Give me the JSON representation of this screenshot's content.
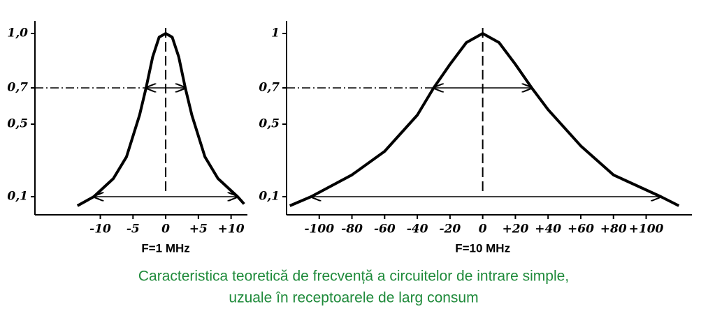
{
  "chart_data": [
    {
      "type": "line",
      "xlabel": "F=1 MHz",
      "x": [
        -13.5,
        -11,
        -8,
        -6,
        -4,
        -3,
        -2,
        -1,
        0,
        1,
        2,
        3,
        4,
        6,
        8,
        11,
        12
      ],
      "values": [
        0.05,
        0.1,
        0.2,
        0.32,
        0.55,
        0.7,
        0.87,
        0.98,
        1.0,
        0.98,
        0.87,
        0.7,
        0.55,
        0.32,
        0.2,
        0.1,
        0.06
      ],
      "color": "#000000",
      "xlim": [
        -20,
        12.5
      ],
      "ylim": [
        0,
        1.05
      ],
      "xticks": [
        -10,
        -5,
        0,
        {
          "value": 5,
          "label": "+5"
        },
        {
          "value": 10,
          "label": "+10"
        }
      ],
      "yticks": [
        {
          "value": 1.0,
          "label": "1,0"
        },
        {
          "value": 0.7,
          "label": "0,7"
        },
        {
          "value": 0.5,
          "label": "0,5"
        },
        {
          "value": 0.1,
          "label": "0,1"
        }
      ]
    },
    {
      "type": "line",
      "xlabel": "F=10 MHz",
      "x": [
        -118,
        -105,
        -80,
        -60,
        -40,
        -30,
        -20,
        -10,
        0,
        10,
        20,
        30,
        40,
        60,
        80,
        109,
        120
      ],
      "values": [
        0.05,
        0.1,
        0.22,
        0.35,
        0.55,
        0.7,
        0.83,
        0.95,
        1.0,
        0.95,
        0.83,
        0.7,
        0.58,
        0.38,
        0.22,
        0.1,
        0.05
      ],
      "color": "#000000",
      "xlim": [
        -120,
        128
      ],
      "ylim": [
        0,
        1.05
      ],
      "xticks": [
        -100,
        -80,
        -60,
        -40,
        -20,
        0,
        {
          "value": 20,
          "label": "+20"
        },
        {
          "value": 40,
          "label": "+40"
        },
        {
          "value": 60,
          "label": "+60"
        },
        {
          "value": 80,
          "label": "+80"
        },
        {
          "value": 100,
          "label": "+100"
        }
      ],
      "yticks": [
        1,
        {
          "value": 0.7,
          "label": "0,7"
        },
        {
          "value": 0.5,
          "label": "0,5"
        },
        {
          "value": 0.1,
          "label": "0,1"
        }
      ]
    }
  ],
  "caption": [
    "Caracteristica teoretică de frecvență a circuitelor de intrare simple,",
    "uzuale în receptoarele de larg consum"
  ]
}
